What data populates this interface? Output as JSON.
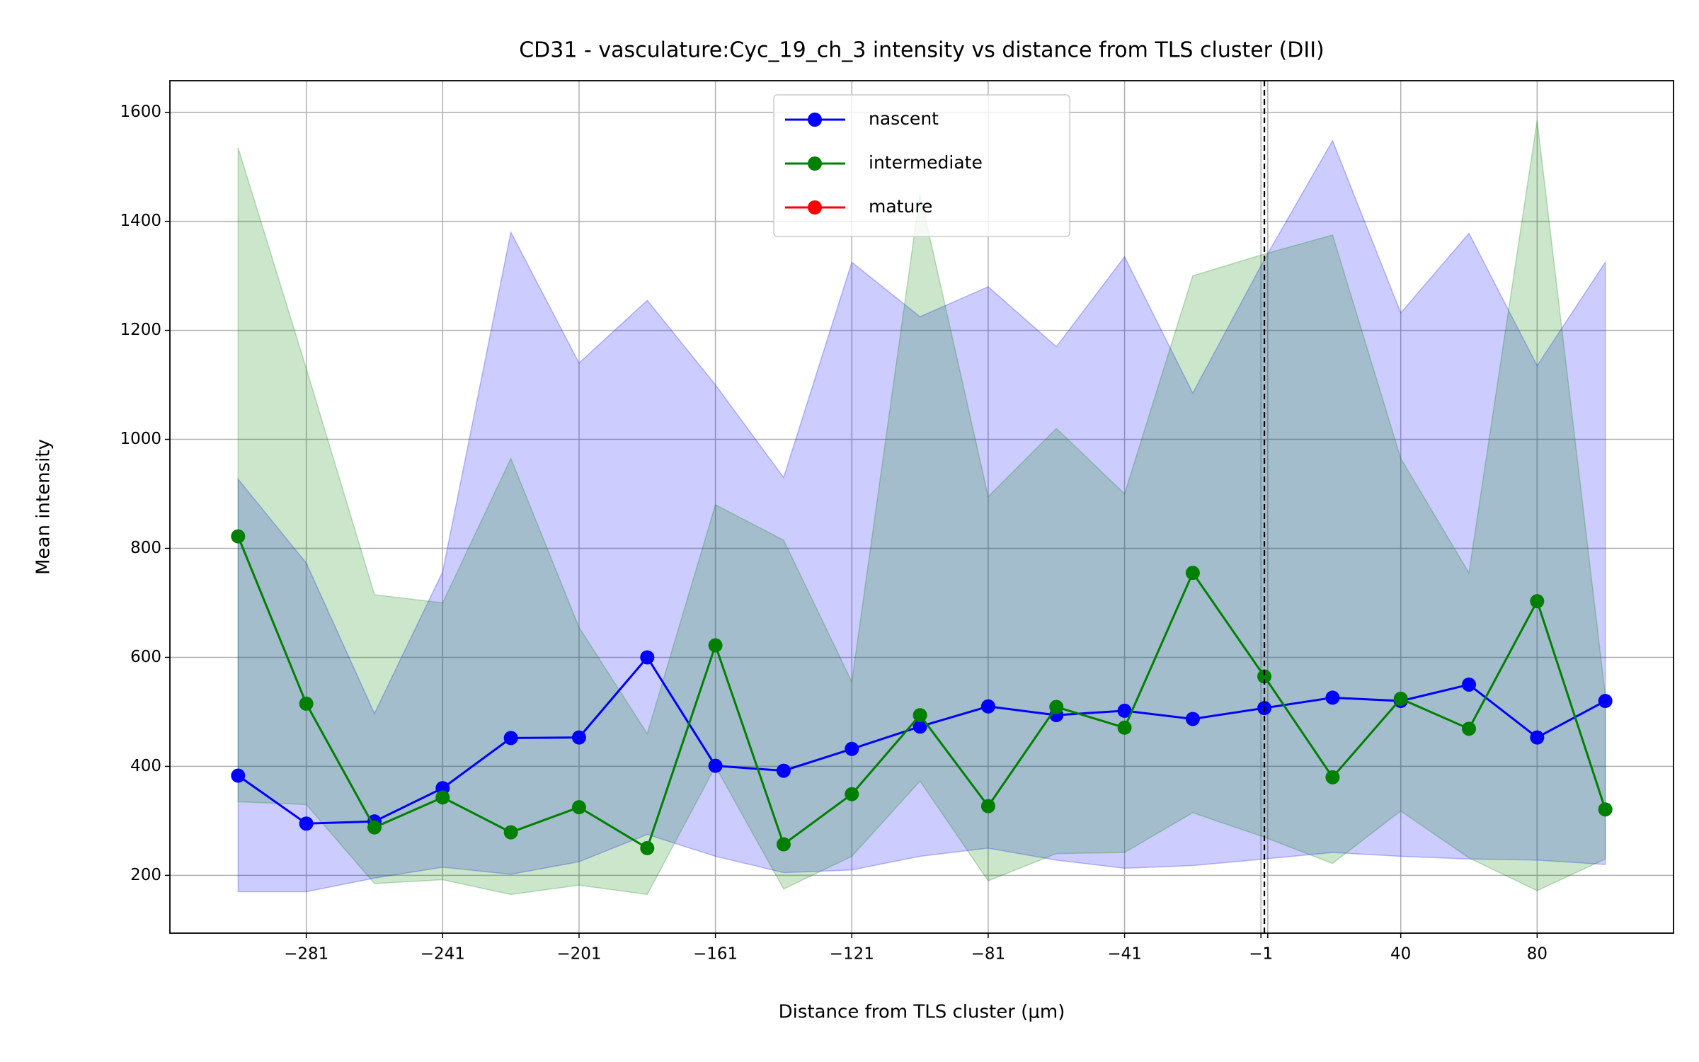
{
  "chart_data": {
    "type": "line",
    "title": "CD31 - vasculature:Cyc_19_ch_3 intensity vs distance from TLS cluster (DII)",
    "xlabel": "Distance from TLS cluster (μm)",
    "ylabel": "Mean intensity",
    "x": [
      -301,
      -281,
      -261,
      -241,
      -221,
      -201,
      -181,
      -161,
      -141,
      -121,
      -101,
      -81,
      -61,
      -41,
      -21,
      0,
      20,
      40,
      60,
      80,
      100
    ],
    "series": [
      {
        "name": "nascent",
        "color": "#0000ff",
        "values": [
          383,
          295,
          299,
          360,
          452,
          453,
          600,
          401,
          392,
          432,
          473,
          510,
          494,
          502,
          487,
          507,
          526,
          520,
          550,
          453,
          520
        ],
        "upper": [
          927,
          773,
          497,
          757,
          1380,
          1140,
          1255,
          1100,
          930,
          1325,
          1225,
          1280,
          1170,
          1335,
          1085,
          1330,
          1548,
          1232,
          1378,
          1135,
          1325
        ],
        "lower": [
          170,
          170,
          195,
          215,
          202,
          225,
          275,
          235,
          205,
          210,
          235,
          250,
          228,
          213,
          218,
          230,
          242,
          235,
          230,
          228,
          220
        ]
      },
      {
        "name": "intermediate",
        "color": "#008000",
        "values": [
          822,
          515,
          288,
          343,
          279,
          325,
          250,
          622,
          257,
          349,
          494,
          327,
          509,
          471,
          755,
          565,
          380,
          524,
          469,
          703,
          321
        ],
        "upper": [
          1535,
          1130,
          715,
          700,
          965,
          655,
          460,
          880,
          815,
          555,
          1450,
          895,
          1020,
          900,
          1300,
          1340,
          1375,
          965,
          755,
          1585,
          530
        ],
        "lower": [
          335,
          330,
          185,
          192,
          165,
          182,
          165,
          400,
          175,
          235,
          373,
          190,
          240,
          242,
          315,
          270,
          222,
          318,
          232,
          172,
          230
        ]
      },
      {
        "name": "mature",
        "color": "#ff0000",
        "values": [
          null,
          null,
          null,
          null,
          null,
          null,
          null,
          null,
          null,
          null,
          null,
          null,
          null,
          null,
          null,
          null,
          null,
          null,
          null,
          null,
          null
        ]
      }
    ],
    "reference_line": {
      "x": 0,
      "style": "dashed"
    },
    "xlim": [
      -321,
      120
    ],
    "ylim": [
      94,
      1658
    ],
    "xticks": [
      {
        "value": -281,
        "label": "−281"
      },
      {
        "value": -241,
        "label": "−241"
      },
      {
        "value": -201,
        "label": "−201"
      },
      {
        "value": -161,
        "label": "−161"
      },
      {
        "value": -121,
        "label": "−121"
      },
      {
        "value": -81,
        "label": "−81"
      },
      {
        "value": -41,
        "label": "−41"
      },
      {
        "value": -1,
        "label": "−1"
      },
      1,
      40,
      80
    ],
    "yticks": [
      200,
      400,
      600,
      800,
      1000,
      1200,
      1400,
      1600
    ],
    "grid": true,
    "legend": "upper center"
  }
}
